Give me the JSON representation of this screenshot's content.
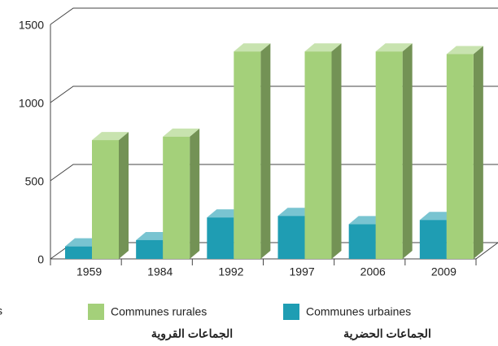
{
  "chart_data": {
    "type": "bar3d",
    "categories": [
      "1959",
      "1984",
      "1992",
      "1997",
      "2006",
      "2009"
    ],
    "series": [
      {
        "name": "Communes urbaines",
        "subtitle": "الجماعات الحضرية",
        "color": "#1f9db3",
        "values": [
          80,
          120,
          265,
          275,
          222,
          249
        ]
      },
      {
        "name": "Communes rurales",
        "subtitle": "الجماعات القروية",
        "color": "#a4d07a",
        "values": [
          760,
          782,
          1327,
          1327,
          1327,
          1310
        ]
      }
    ],
    "ylim": [
      0,
      1500
    ],
    "yticks": [
      0,
      500,
      1000,
      1500
    ],
    "grid": true,
    "legend_fragment": "s"
  }
}
